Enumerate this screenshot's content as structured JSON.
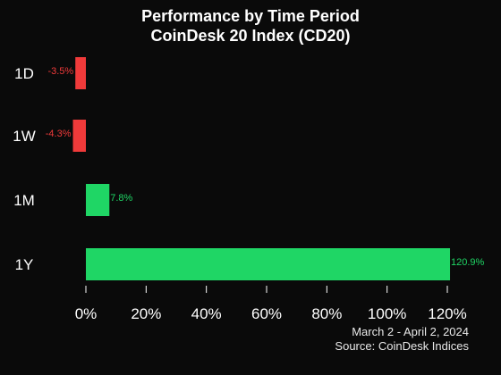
{
  "header": {
    "title_line1": "Performance by Time Period",
    "title_line2": "CoinDesk 20 Index (CD20)"
  },
  "footer": {
    "date_range": "March 2 - April 2, 2024",
    "source": "Source: CoinDesk Indices"
  },
  "colors": {
    "background": "#0a0a0a",
    "positive": "#1fd665",
    "negative": "#f03a3a",
    "text": "#ffffff"
  },
  "chart_data": {
    "type": "bar",
    "orientation": "horizontal",
    "title": "Performance by Time Period",
    "subtitle": "CoinDesk 20 Index (CD20)",
    "categories": [
      "1D",
      "1W",
      "1M",
      "1Y"
    ],
    "values": [
      -3.5,
      -4.3,
      7.8,
      120.9
    ],
    "value_labels": [
      "-3.5%",
      "-4.3%",
      "7.8%",
      "120.9%"
    ],
    "xlim": [
      0,
      120
    ],
    "xticks": [
      0,
      20,
      40,
      60,
      80,
      100,
      120
    ],
    "xtick_labels": [
      "0%",
      "20%",
      "40%",
      "60%",
      "80%",
      "100%",
      "120%"
    ],
    "grid": false,
    "legend": "none"
  }
}
